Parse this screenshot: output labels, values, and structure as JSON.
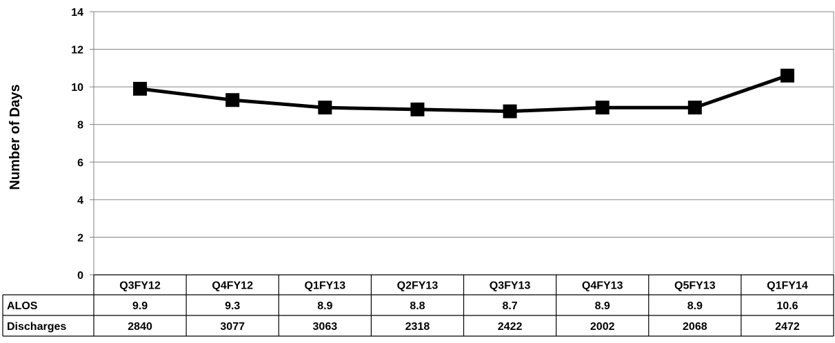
{
  "chart_data": {
    "type": "line",
    "title": "",
    "xlabel": "",
    "ylabel": "Number of Days",
    "ylim": [
      0,
      14
    ],
    "yticks": [
      0,
      2,
      4,
      6,
      8,
      10,
      12,
      14
    ],
    "grid": true,
    "categories": [
      "Q3FY12",
      "Q4FY12",
      "Q1FY13",
      "Q2FY13",
      "Q3FY13",
      "Q4FY13",
      "Q5FY13",
      "Q1FY14"
    ],
    "series": [
      {
        "name": "ALOS",
        "values": [
          9.9,
          9.3,
          8.9,
          8.8,
          8.7,
          8.9,
          8.9,
          10.6
        ],
        "color": "#000000"
      }
    ],
    "table": {
      "rows": [
        {
          "label": "ALOS",
          "values": [
            "9.9",
            "9.3",
            "8.9",
            "8.8",
            "8.7",
            "8.9",
            "8.9",
            "10.6"
          ]
        },
        {
          "label": "Discharges",
          "values": [
            "2840",
            "3077",
            "3063",
            "2318",
            "2422",
            "2002",
            "2068",
            "2472"
          ]
        }
      ]
    }
  }
}
